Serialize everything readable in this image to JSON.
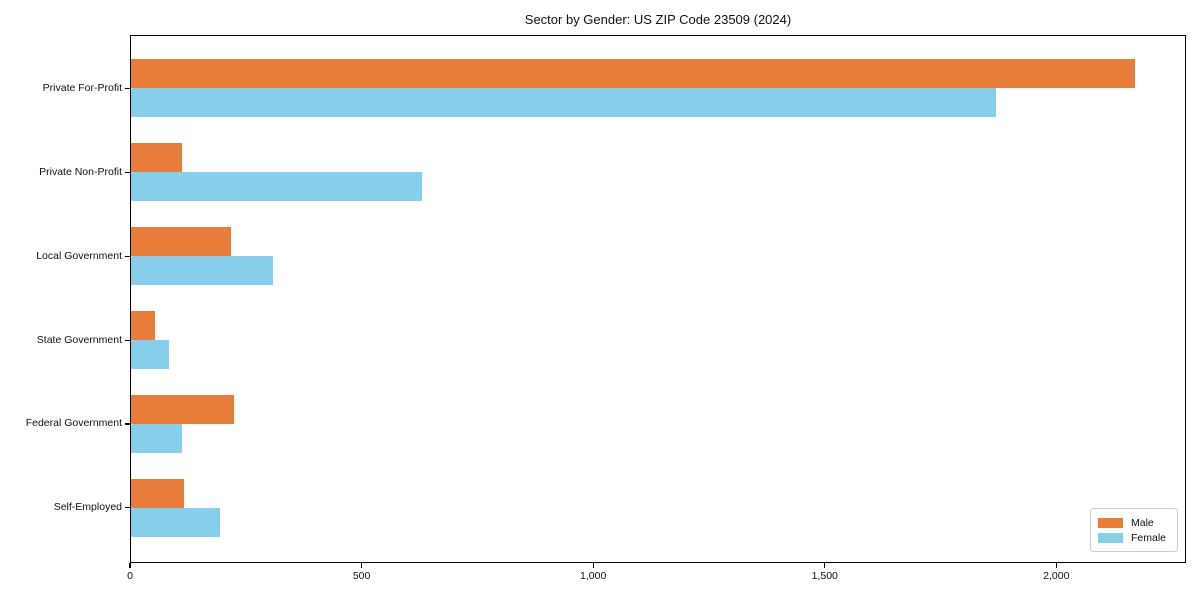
{
  "chart_data": {
    "type": "bar",
    "orientation": "horizontal",
    "title": "Sector by Gender: US ZIP Code 23509 (2024)",
    "categories": [
      "Private For-Profit",
      "Private Non-Profit",
      "Local Government",
      "State Government",
      "Federal Government",
      "Self-Employed"
    ],
    "series": [
      {
        "name": "Male",
        "color": "#E87D3C",
        "values": [
          2170,
          112,
          218,
          53,
          225,
          117
        ]
      },
      {
        "name": "Female",
        "color": "#87CEEB",
        "values": [
          1870,
          630,
          308,
          84,
          112,
          195
        ]
      }
    ],
    "xlabel": "",
    "ylabel": "",
    "xlim": [
      0,
      2280
    ],
    "xticks": [
      0,
      500,
      1000,
      1500,
      2000
    ],
    "xtick_labels": [
      "0",
      "500",
      "1,000",
      "1,500",
      "2,000"
    ],
    "grid": false,
    "legend": {
      "position": "lower right",
      "entries": [
        "Male",
        "Female"
      ]
    }
  }
}
